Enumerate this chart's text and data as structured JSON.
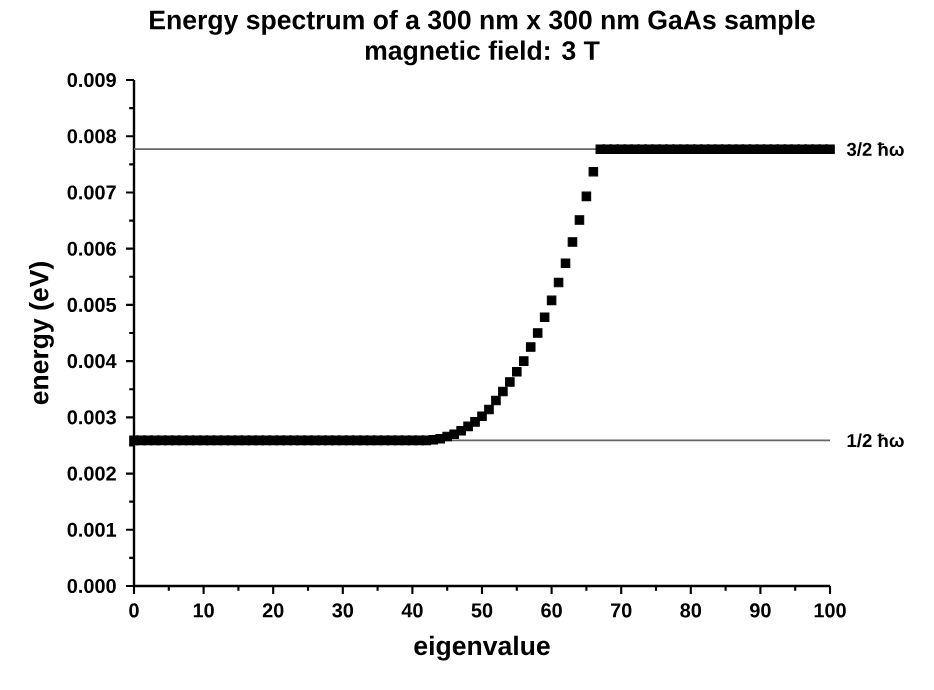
{
  "chart_data": {
    "type": "scatter",
    "title": "Energy spectrum of a 300 nm x 300 nm GaAs sample",
    "subtitle": "magnetic field: 3 T",
    "xlabel": "eigenvalue",
    "ylabel": "energy (eV)",
    "x": [
      0,
      1,
      2,
      3,
      4,
      5,
      6,
      7,
      8,
      9,
      10,
      11,
      12,
      13,
      14,
      15,
      16,
      17,
      18,
      19,
      20,
      21,
      22,
      23,
      24,
      25,
      26,
      27,
      28,
      29,
      30,
      31,
      32,
      33,
      34,
      35,
      36,
      37,
      38,
      39,
      40,
      41,
      42,
      43,
      44,
      45,
      46,
      47,
      48,
      49,
      50,
      51,
      52,
      53,
      54,
      55,
      56,
      57,
      58,
      59,
      60,
      61,
      62,
      63,
      64,
      65,
      66,
      67,
      68,
      69,
      70,
      71,
      72,
      73,
      74,
      75,
      76,
      77,
      78,
      79,
      80,
      81,
      82,
      83,
      84,
      85,
      86,
      87,
      88,
      89,
      90,
      91,
      92,
      93,
      94,
      95,
      96,
      97,
      98,
      99,
      100
    ],
    "series": [
      {
        "color": "#000000",
        "values": [
          0.00259,
          0.00259,
          0.00259,
          0.00259,
          0.00259,
          0.00259,
          0.00259,
          0.00259,
          0.00259,
          0.00259,
          0.00259,
          0.00259,
          0.00259,
          0.00259,
          0.00259,
          0.00259,
          0.00259,
          0.00259,
          0.00259,
          0.00259,
          0.00259,
          0.00259,
          0.00259,
          0.00259,
          0.00259,
          0.00259,
          0.00259,
          0.00259,
          0.00259,
          0.00259,
          0.00259,
          0.00259,
          0.00259,
          0.00259,
          0.00259,
          0.00259,
          0.00259,
          0.00259,
          0.00259,
          0.00259,
          0.00259,
          0.00259,
          0.00259,
          0.0026,
          0.00262,
          0.00266,
          0.0027,
          0.00276,
          0.00284,
          0.00292,
          0.00302,
          0.00314,
          0.0033,
          0.00346,
          0.00363,
          0.00381,
          0.004,
          0.00425,
          0.0045,
          0.00478,
          0.00508,
          0.0054,
          0.00574,
          0.00612,
          0.00651,
          0.00693,
          0.00737,
          0.00777,
          0.00777,
          0.00777,
          0.00777,
          0.00777,
          0.00777,
          0.00777,
          0.00777,
          0.00777,
          0.00777,
          0.00777,
          0.00777,
          0.00777,
          0.00777,
          0.00777,
          0.00777,
          0.00777,
          0.00777,
          0.00777,
          0.00777,
          0.00777,
          0.00777,
          0.00777,
          0.00777,
          0.00777,
          0.00777,
          0.00777,
          0.00777,
          0.00777,
          0.00777,
          0.00777,
          0.00777,
          0.00777,
          0.00777
        ]
      }
    ],
    "xlim": [
      0,
      100
    ],
    "xticks": [
      0,
      10,
      20,
      30,
      40,
      50,
      60,
      70,
      80,
      90,
      100
    ],
    "ylim": [
      0,
      0.009
    ],
    "yticks": [
      {
        "value": 0,
        "label": "0.000"
      },
      {
        "value": 0.001,
        "label": "0.001"
      },
      {
        "value": 0.002,
        "label": "0.002"
      },
      {
        "value": 0.003,
        "label": "0.003"
      },
      {
        "value": 0.004,
        "label": "0.004"
      },
      {
        "value": 0.005,
        "label": "0.005"
      },
      {
        "value": 0.006,
        "label": "0.006"
      },
      {
        "value": 0.007,
        "label": "0.007"
      },
      {
        "value": 0.008,
        "label": "0.008"
      },
      {
        "value": 0.009,
        "label": "0.009"
      }
    ],
    "ref_lines": [
      {
        "axis": "y",
        "value": 0.00259,
        "label": "1/2 ħω",
        "color": "#666666"
      },
      {
        "axis": "y",
        "value": 0.00777,
        "label": "3/2 ħω",
        "color": "#666666"
      }
    ],
    "marker": "square"
  }
}
